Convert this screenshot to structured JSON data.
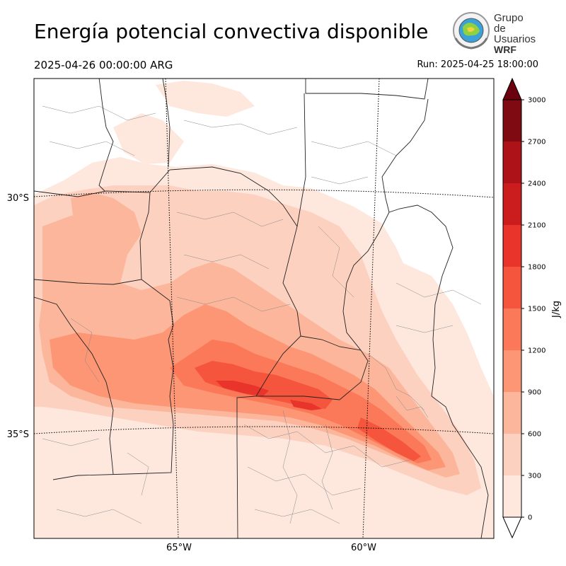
{
  "header": {
    "title": "Energía potencial convectiva disponible",
    "valid_time": "2025-04-26 00:00:00 ARG",
    "run_time": "Run: 2025-04-25 18:00:00"
  },
  "logo": {
    "line1": "Grupo de",
    "line2": "Usuarios",
    "line3": "WRF"
  },
  "map": {
    "lat_labels": [
      "30°S",
      "35°S"
    ],
    "lon_labels": [
      "65°W",
      "60°W"
    ]
  },
  "colorbar": {
    "unit": "J/kg",
    "levels": [
      0,
      300,
      600,
      900,
      1200,
      1500,
      1800,
      2100,
      2400,
      2700,
      3000
    ],
    "colors": [
      "#fee8de",
      "#fdd1c0",
      "#fcb69b",
      "#fc9675",
      "#fb7858",
      "#f5553c",
      "#e8342a",
      "#cb1c1e",
      "#ac1218",
      "#800a12"
    ],
    "extend_below_color": "#ffffff",
    "extend_above_color": "#6b010e"
  }
}
